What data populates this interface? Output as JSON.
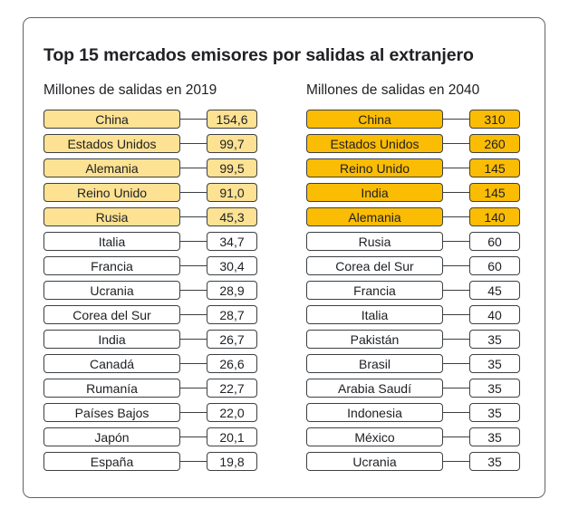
{
  "title": "Top 15 mercados emisores por salidas al extranjero",
  "colors": {
    "highlight_2019": "#fde293",
    "highlight_2040": "#fbbc04",
    "default": "#ffffff"
  },
  "chart_data": [
    {
      "type": "table",
      "title": "Millones de salidas en 2019",
      "highlight_top": 5,
      "rows": [
        {
          "country": "China",
          "value": "154,6"
        },
        {
          "country": "Estados Unidos",
          "value": "99,7"
        },
        {
          "country": "Alemania",
          "value": "99,5"
        },
        {
          "country": "Reino Unido",
          "value": "91,0"
        },
        {
          "country": "Rusia",
          "value": "45,3"
        },
        {
          "country": "Italia",
          "value": "34,7"
        },
        {
          "country": "Francia",
          "value": "30,4"
        },
        {
          "country": "Ucrania",
          "value": "28,9"
        },
        {
          "country": "Corea del Sur",
          "value": "28,7"
        },
        {
          "country": "India",
          "value": "26,7"
        },
        {
          "country": "Canadá",
          "value": "26,6"
        },
        {
          "country": "Rumanía",
          "value": "22,7"
        },
        {
          "country": "Países Bajos",
          "value": "22,0"
        },
        {
          "country": "Japón",
          "value": "20,1"
        },
        {
          "country": "España",
          "value": "19,8"
        }
      ]
    },
    {
      "type": "table",
      "title": "Millones de salidas en 2040",
      "highlight_top": 5,
      "rows": [
        {
          "country": "China",
          "value": "310"
        },
        {
          "country": "Estados Unidos",
          "value": "260"
        },
        {
          "country": "Reino Unido",
          "value": "145"
        },
        {
          "country": "India",
          "value": "145"
        },
        {
          "country": "Alemania",
          "value": "140"
        },
        {
          "country": "Rusia",
          "value": "60"
        },
        {
          "country": "Corea del Sur",
          "value": "60"
        },
        {
          "country": "Francia",
          "value": "45"
        },
        {
          "country": "Italia",
          "value": "40"
        },
        {
          "country": "Pakistán",
          "value": "35"
        },
        {
          "country": "Brasil",
          "value": "35"
        },
        {
          "country": "Arabia Saudí",
          "value": "35"
        },
        {
          "country": "Indonesia",
          "value": "35"
        },
        {
          "country": "México",
          "value": "35"
        },
        {
          "country": "Ucrania",
          "value": "35"
        }
      ]
    }
  ]
}
